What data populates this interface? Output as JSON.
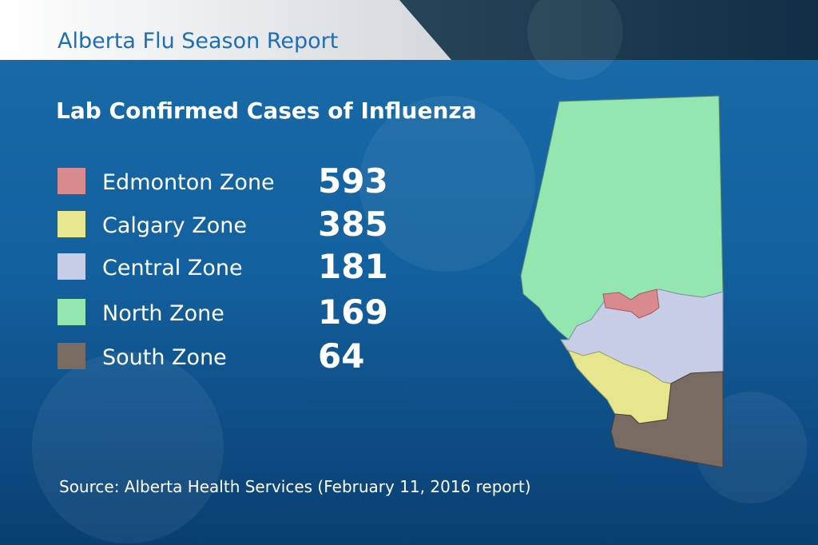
{
  "header": {
    "title": "Alberta Flu Season Report"
  },
  "subtitle": "Lab Confirmed Cases of Influenza",
  "zones": [
    {
      "name": "Edmonton Zone",
      "value": 593,
      "color": "#d98a8f"
    },
    {
      "name": "Calgary Zone",
      "value": 385,
      "color": "#e6e68e"
    },
    {
      "name": "Central Zone",
      "value": 181,
      "color": "#c7cde6"
    },
    {
      "name": "North Zone",
      "value": 169,
      "color": "#93e6b0"
    },
    {
      "name": "South Zone",
      "value": 64,
      "color": "#7a6b62"
    }
  ],
  "source": "Source: Alberta Health Services (February 11, 2016 report)"
}
